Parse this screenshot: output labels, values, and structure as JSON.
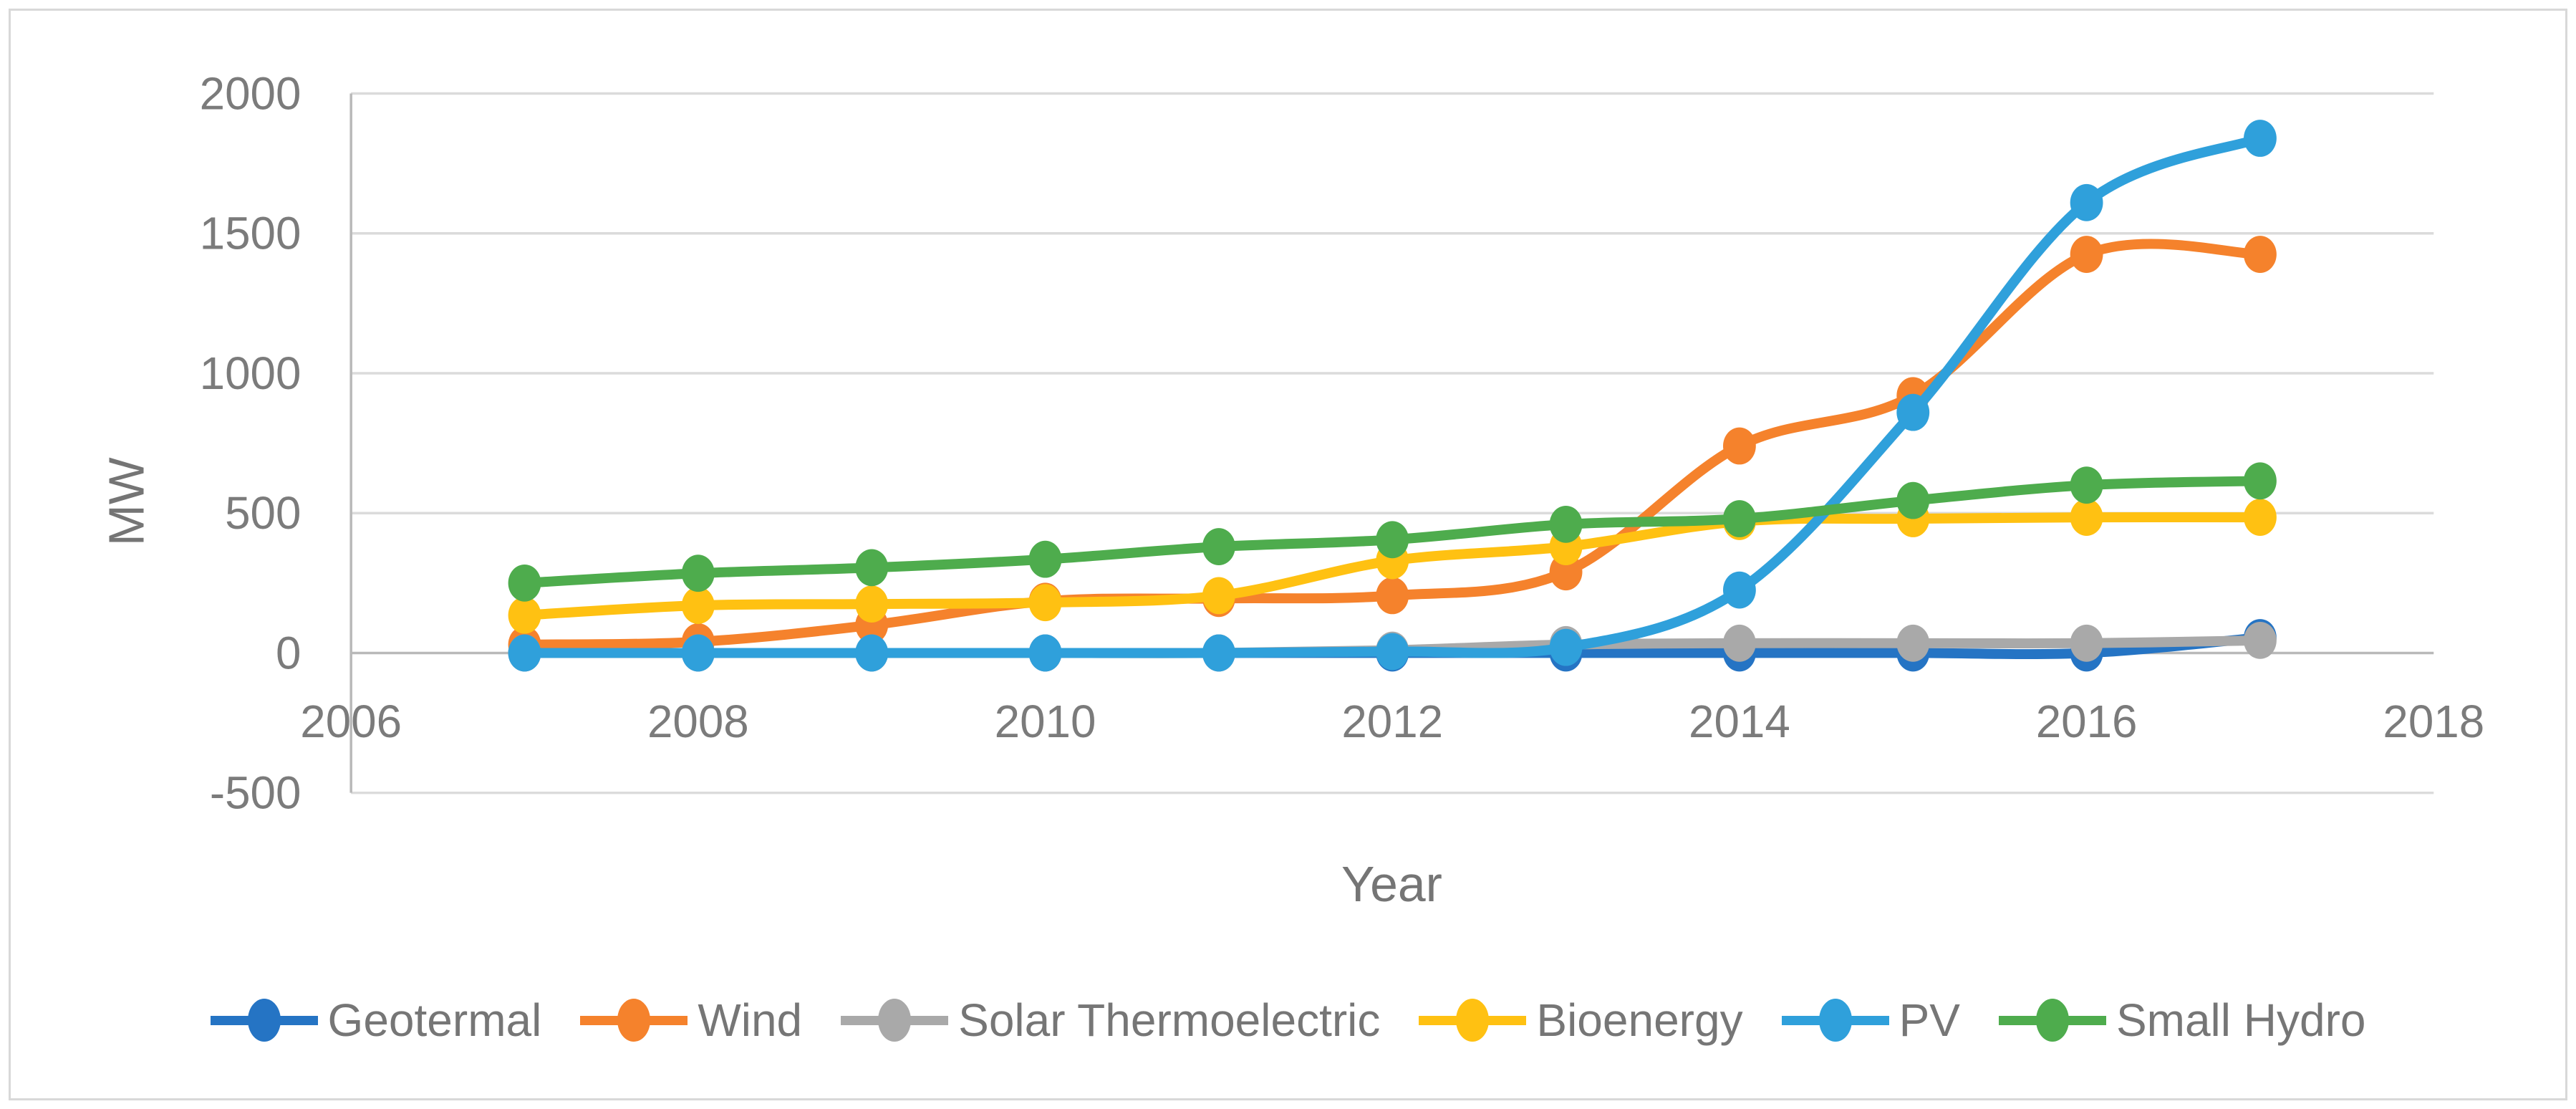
{
  "chart_data": {
    "type": "line",
    "title": "",
    "xlabel": "Year",
    "ylabel": "MW",
    "x": [
      2007,
      2008,
      2009,
      2010,
      2011,
      2012,
      2013,
      2014,
      2015,
      2016,
      2017
    ],
    "series": [
      {
        "name": "Geotermal",
        "color": "#2574C4",
        "values": [
          0,
          0,
          0,
          0,
          0,
          0,
          0,
          0,
          0,
          0,
          55
        ]
      },
      {
        "name": "Wind",
        "color": "#F5822C",
        "values": [
          30,
          40,
          100,
          185,
          195,
          205,
          290,
          740,
          920,
          1425,
          1425
        ]
      },
      {
        "name": "Solar Thermoelectric",
        "color": "#A9A9A9",
        "values": [
          0,
          0,
          0,
          0,
          0,
          10,
          30,
          35,
          35,
          35,
          45
        ]
      },
      {
        "name": "Bioenergy",
        "color": "#FFC112",
        "values": [
          135,
          170,
          175,
          180,
          205,
          330,
          380,
          470,
          480,
          485,
          485
        ]
      },
      {
        "name": "PV",
        "color": "#2FA0DB",
        "values": [
          0,
          0,
          0,
          0,
          0,
          5,
          20,
          225,
          860,
          1610,
          1840
        ]
      },
      {
        "name": "Small Hydro",
        "color": "#4EAC4D",
        "values": [
          250,
          285,
          305,
          335,
          380,
          405,
          460,
          480,
          545,
          600,
          615
        ]
      }
    ],
    "xlim": [
      2006,
      2018
    ],
    "ylim": [
      -500,
      2000
    ],
    "x_ticks": [
      2006,
      2008,
      2010,
      2012,
      2014,
      2016,
      2018
    ],
    "y_ticks": [
      -500,
      0,
      500,
      1000,
      1500,
      2000
    ],
    "grid": true,
    "smooth": true,
    "marker": "circle",
    "legend_position": "bottom"
  },
  "styles": {
    "grid_color": "#dbdbdb",
    "axis_color": "#b9b9b9",
    "tick_text_color": "#7b7b7b",
    "title_text_color": "#757575",
    "legend_text_color": "#767676",
    "background": "#ffffff",
    "figure_border": "#d8d8d8"
  }
}
